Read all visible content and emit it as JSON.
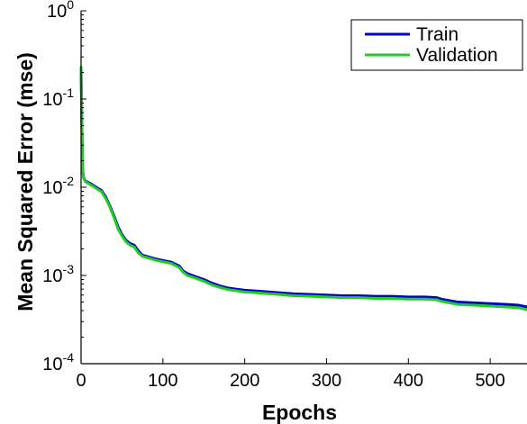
{
  "chart_data": {
    "type": "line",
    "title": "",
    "xlabel": "Epochs",
    "ylabel": "Mean Squared Error  (mse)",
    "xlim": [
      0,
      545
    ],
    "ylim": [
      0.0001,
      1
    ],
    "yscale": "log",
    "grid": false,
    "legend_position": "top-right",
    "x_ticks": [
      0,
      100,
      200,
      300,
      400,
      500
    ],
    "x_tick_labels": [
      "0",
      "100",
      "200",
      "300",
      "400",
      "500"
    ],
    "y_ticks": [
      {
        "value": 1,
        "base": "10",
        "exp": "0"
      },
      {
        "value": 0.1,
        "base": "10",
        "exp": "-1"
      },
      {
        "value": 0.01,
        "base": "10",
        "exp": "-2"
      },
      {
        "value": 0.001,
        "base": "10",
        "exp": "-3"
      },
      {
        "value": 0.0001,
        "base": "10",
        "exp": "-4"
      }
    ],
    "series": [
      {
        "name": "Train",
        "color": "#0000cc",
        "points": [
          [
            0,
            0.22
          ],
          [
            1,
            0.05
          ],
          [
            2,
            0.016
          ],
          [
            3,
            0.013
          ],
          [
            5,
            0.0118
          ],
          [
            10,
            0.0112
          ],
          [
            15,
            0.0105
          ],
          [
            20,
            0.0098
          ],
          [
            25,
            0.0092
          ],
          [
            30,
            0.0078
          ],
          [
            35,
            0.0062
          ],
          [
            40,
            0.0048
          ],
          [
            45,
            0.0036
          ],
          [
            50,
            0.0029
          ],
          [
            55,
            0.0025
          ],
          [
            60,
            0.0023
          ],
          [
            65,
            0.0022
          ],
          [
            70,
            0.0019
          ],
          [
            75,
            0.0017
          ],
          [
            80,
            0.00165
          ],
          [
            90,
            0.00155
          ],
          [
            100,
            0.00148
          ],
          [
            110,
            0.00142
          ],
          [
            120,
            0.00128
          ],
          [
            125,
            0.00112
          ],
          [
            130,
            0.00105
          ],
          [
            140,
            0.00097
          ],
          [
            150,
            0.0009
          ],
          [
            160,
            0.00082
          ],
          [
            170,
            0.00076
          ],
          [
            180,
            0.00072
          ],
          [
            190,
            0.0007
          ],
          [
            200,
            0.00068
          ],
          [
            220,
            0.00066
          ],
          [
            240,
            0.00064
          ],
          [
            260,
            0.00062
          ],
          [
            280,
            0.00061
          ],
          [
            300,
            0.0006
          ],
          [
            320,
            0.00059
          ],
          [
            340,
            0.00059
          ],
          [
            360,
            0.00058
          ],
          [
            380,
            0.00058
          ],
          [
            400,
            0.00057
          ],
          [
            420,
            0.00057
          ],
          [
            435,
            0.00056
          ],
          [
            440,
            0.00054
          ],
          [
            450,
            0.00052
          ],
          [
            460,
            0.0005
          ],
          [
            480,
            0.00049
          ],
          [
            500,
            0.00048
          ],
          [
            520,
            0.00047
          ],
          [
            535,
            0.00046
          ],
          [
            545,
            0.00044
          ]
        ]
      },
      {
        "name": "Validation",
        "color": "#22cc22",
        "points": [
          [
            0,
            0.23
          ],
          [
            1,
            0.052
          ],
          [
            2,
            0.0155
          ],
          [
            3,
            0.0128
          ],
          [
            5,
            0.0116
          ],
          [
            10,
            0.0109
          ],
          [
            15,
            0.0102
          ],
          [
            20,
            0.0095
          ],
          [
            25,
            0.0089
          ],
          [
            30,
            0.0075
          ],
          [
            35,
            0.006
          ],
          [
            40,
            0.0046
          ],
          [
            45,
            0.0034
          ],
          [
            50,
            0.0028
          ],
          [
            55,
            0.0024
          ],
          [
            60,
            0.0022
          ],
          [
            65,
            0.0021
          ],
          [
            70,
            0.0018
          ],
          [
            75,
            0.00165
          ],
          [
            80,
            0.0016
          ],
          [
            90,
            0.0015
          ],
          [
            100,
            0.00143
          ],
          [
            110,
            0.00137
          ],
          [
            120,
            0.00123
          ],
          [
            125,
            0.00108
          ],
          [
            130,
            0.001
          ],
          [
            140,
            0.00093
          ],
          [
            150,
            0.00086
          ],
          [
            160,
            0.00078
          ],
          [
            170,
            0.00073
          ],
          [
            180,
            0.00069
          ],
          [
            190,
            0.00067
          ],
          [
            200,
            0.00065
          ],
          [
            220,
            0.00063
          ],
          [
            240,
            0.00061
          ],
          [
            260,
            0.00059
          ],
          [
            280,
            0.00058
          ],
          [
            300,
            0.00057
          ],
          [
            320,
            0.00056
          ],
          [
            340,
            0.00056
          ],
          [
            360,
            0.00055
          ],
          [
            380,
            0.00055
          ],
          [
            400,
            0.00054
          ],
          [
            420,
            0.00054
          ],
          [
            435,
            0.00053
          ],
          [
            440,
            0.00051
          ],
          [
            450,
            0.00049
          ],
          [
            460,
            0.00047
          ],
          [
            480,
            0.00046
          ],
          [
            500,
            0.00045
          ],
          [
            520,
            0.00044
          ],
          [
            535,
            0.00043
          ],
          [
            545,
            0.00041
          ]
        ]
      }
    ]
  }
}
